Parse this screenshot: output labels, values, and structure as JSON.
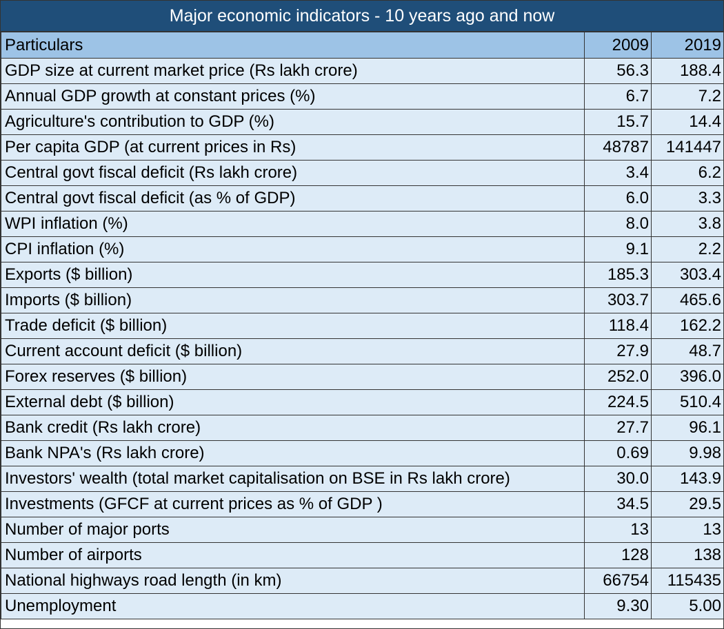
{
  "title": "Major economic indicators  - 10 years ago and now",
  "chart_data": {
    "type": "table",
    "title": "Major economic indicators  - 10 years ago and now",
    "columns": [
      "Particulars",
      "2009",
      "2019"
    ],
    "rows": [
      {
        "label": "GDP size at current market price (Rs lakh crore)",
        "v2009": "56.3",
        "v2019": "188.4"
      },
      {
        "label": "Annual GDP growth at constant prices (%)",
        "v2009": "6.7",
        "v2019": "7.2"
      },
      {
        "label": "Agriculture's contribution to GDP (%)",
        "v2009": "15.7",
        "v2019": "14.4"
      },
      {
        "label": "Per capita GDP (at current prices in Rs)",
        "v2009": "48787",
        "v2019": "141447"
      },
      {
        "label": "Central govt fiscal deficit (Rs lakh crore)",
        "v2009": "3.4",
        "v2019": "6.2"
      },
      {
        "label": "Central govt fiscal deficit (as % of GDP)",
        "v2009": "6.0",
        "v2019": "3.3"
      },
      {
        "label": "WPI inflation (%)",
        "v2009": "8.0",
        "v2019": "3.8"
      },
      {
        "label": "CPI inflation (%)",
        "v2009": "9.1",
        "v2019": "2.2"
      },
      {
        "label": "Exports ($ billion)",
        "v2009": "185.3",
        "v2019": "303.4"
      },
      {
        "label": "Imports ($ billion)",
        "v2009": "303.7",
        "v2019": "465.6"
      },
      {
        "label": "Trade deficit ($ billion)",
        "v2009": "118.4",
        "v2019": "162.2"
      },
      {
        "label": "Current account deficit ($ billion)",
        "v2009": "27.9",
        "v2019": "48.7"
      },
      {
        "label": "Forex reserves ($ billion)",
        "v2009": "252.0",
        "v2019": "396.0"
      },
      {
        "label": "External debt ($ billion)",
        "v2009": "224.5",
        "v2019": "510.4"
      },
      {
        "label": "Bank credit (Rs lakh crore)",
        "v2009": "27.7",
        "v2019": "96.1"
      },
      {
        "label": "Bank NPA's (Rs lakh crore)",
        "v2009": "0.69",
        "v2019": "9.98"
      },
      {
        "label": "Investors' wealth (total market capitalisation on BSE in Rs lakh crore)",
        "v2009": "30.0",
        "v2019": "143.9"
      },
      {
        "label": "Investments (GFCF at current prices as % of GDP )",
        "v2009": "34.5",
        "v2019": "29.5"
      },
      {
        "label": "Number of major ports",
        "v2009": "13",
        "v2019": "13"
      },
      {
        "label": "Number of airports",
        "v2009": "128",
        "v2019": "138"
      },
      {
        "label": "National highways road length (in km)",
        "v2009": "66754",
        "v2019": "115435"
      },
      {
        "label": "Unemployment",
        "v2009": "9.30",
        "v2019": "5.00"
      }
    ]
  },
  "colors": {
    "title_bg": "#1f4e79",
    "header_bg": "#9dc3e6",
    "row_bg": "#ddebf7"
  }
}
